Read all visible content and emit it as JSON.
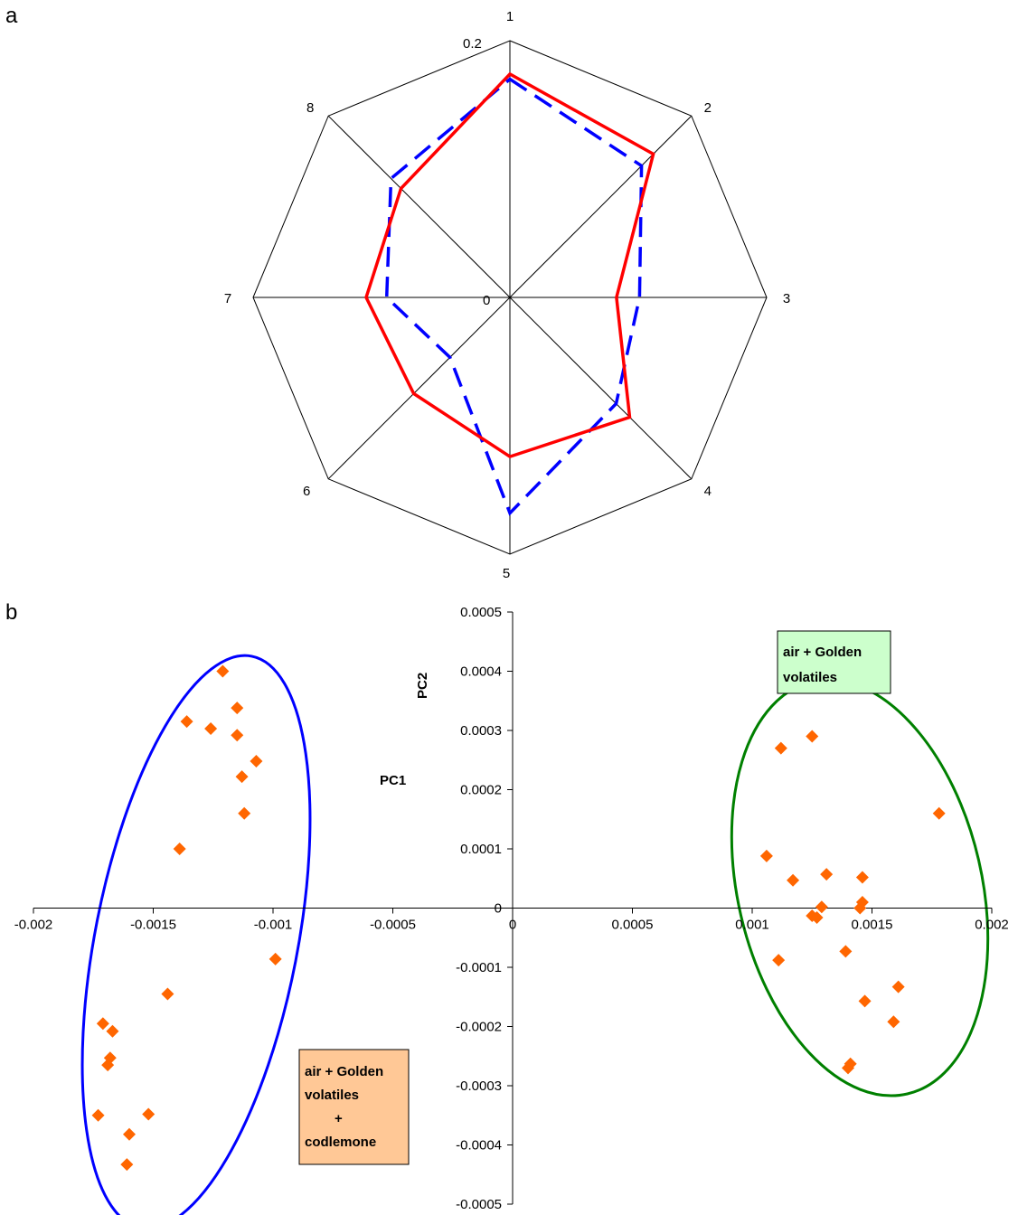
{
  "panels": {
    "a": "a",
    "b": "b"
  },
  "chart_data": [
    {
      "type": "radar",
      "panel": "a",
      "categories": [
        "1",
        "2",
        "3",
        "4",
        "5",
        "6",
        "7",
        "8"
      ],
      "rmin": 0,
      "rmax": 0.2,
      "ring_labels": [
        "0",
        "0.2"
      ],
      "series": [
        {
          "style": "solid",
          "color": "#ff0000",
          "values": [
            0.174,
            0.158,
            0.083,
            0.132,
            0.124,
            0.106,
            0.112,
            0.12
          ]
        },
        {
          "style": "dashed",
          "color": "#0000ff",
          "values": [
            0.17,
            0.145,
            0.101,
            0.117,
            0.168,
            0.066,
            0.096,
            0.131
          ]
        }
      ]
    },
    {
      "type": "scatter",
      "panel": "b",
      "xlabel": "PC1",
      "ylabel": "PC2",
      "xlim": [
        -0.002,
        0.002
      ],
      "ylim": [
        -0.0005,
        0.0005
      ],
      "xticks": [
        "-0.002",
        "-0.0015",
        "-0.001",
        "-0.0005",
        "0",
        "0.0005",
        "0.001",
        "0.0015",
        "0.002"
      ],
      "yticks": [
        "-0.0005",
        "-0.0004",
        "-0.0003",
        "-0.0002",
        "-0.0001",
        "0",
        "0.0001",
        "0.0002",
        "0.0003",
        "0.0004",
        "0.0005"
      ],
      "marker_color": "#ff6600",
      "points": [
        [
          -0.00121,
          0.0004
        ],
        [
          -0.00115,
          0.000338
        ],
        [
          -0.00136,
          0.000315
        ],
        [
          -0.00126,
          0.000303
        ],
        [
          -0.00115,
          0.000292
        ],
        [
          -0.00107,
          0.000248
        ],
        [
          -0.00113,
          0.000222
        ],
        [
          -0.00112,
          0.00016
        ],
        [
          -0.00139,
          0.0001
        ],
        [
          -0.00099,
          -8.6e-05
        ],
        [
          -0.00144,
          -0.000145
        ],
        [
          -0.00171,
          -0.000195
        ],
        [
          -0.00167,
          -0.000208
        ],
        [
          -0.00168,
          -0.000253
        ],
        [
          -0.00169,
          -0.000265
        ],
        [
          -0.00152,
          -0.000348
        ],
        [
          -0.00173,
          -0.00035
        ],
        [
          -0.0016,
          -0.000382
        ],
        [
          -0.00161,
          -0.000433
        ],
        [
          0.00112,
          0.00027
        ],
        [
          0.00125,
          0.00029
        ],
        [
          0.00178,
          0.00016
        ],
        [
          0.00106,
          8.8e-05
        ],
        [
          0.00131,
          5.7e-05
        ],
        [
          0.00146,
          5.2e-05
        ],
        [
          0.00117,
          4.7e-05
        ],
        [
          0.00146,
          1e-05
        ],
        [
          0.00129,
          2e-06
        ],
        [
          0.00145,
          0
        ],
        [
          0.00125,
          -1.3e-05
        ],
        [
          0.00127,
          -1.6e-05
        ],
        [
          0.00139,
          -7.3e-05
        ],
        [
          0.00111,
          -8.8e-05
        ],
        [
          0.00161,
          -0.000133
        ],
        [
          0.00147,
          -0.000157
        ],
        [
          0.00159,
          -0.000192
        ],
        [
          0.00141,
          -0.000263
        ],
        [
          0.0014,
          -0.00027
        ]
      ],
      "clusters": [
        {
          "color": "#0000ff",
          "label_lines": [
            "air + Golden",
            "volatiles",
            "+",
            "codlemone"
          ],
          "label_bg": "#ffc896"
        },
        {
          "color": "#008000",
          "label_lines": [
            "air + Golden",
            "volatiles"
          ],
          "label_bg": "#ccffcc"
        }
      ]
    }
  ]
}
